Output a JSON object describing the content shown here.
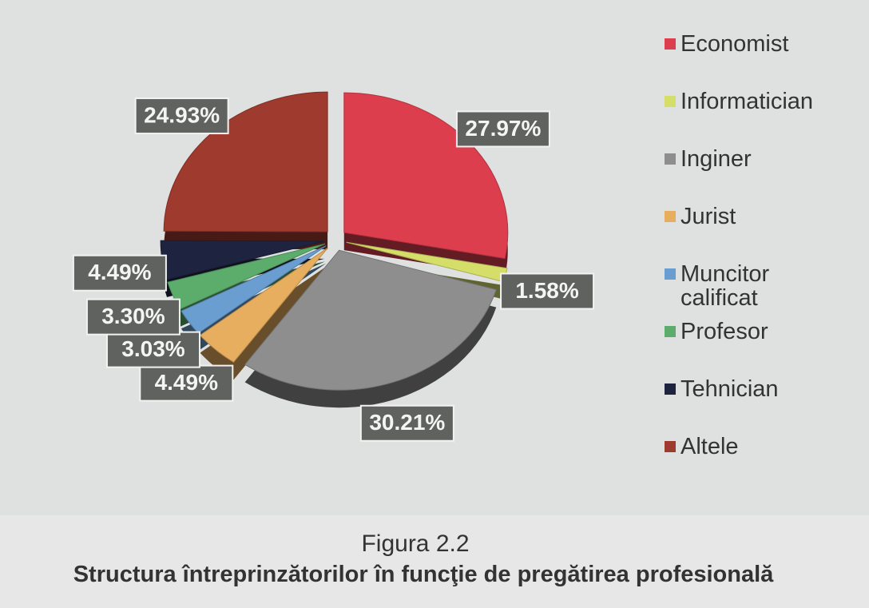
{
  "chart_data": {
    "type": "pie",
    "categories": [
      "Economist",
      "Informatician",
      "Inginer",
      "Jurist",
      "Muncitor calificat",
      "Profesor",
      "Tehnician",
      "Altele"
    ],
    "values": [
      27.97,
      1.58,
      30.21,
      4.49,
      3.03,
      3.3,
      4.49,
      24.93
    ],
    "value_labels": [
      "27.97%",
      "1.58%",
      "30.21%",
      "4.49%",
      "3.03%",
      "3.30%",
      "4.49%",
      "24.93%"
    ],
    "colors": [
      "#dc3e4e",
      "#d6de6a",
      "#8e8e8e",
      "#e6ae5e",
      "#6a9ed0",
      "#5cac6c",
      "#1e2440",
      "#9e3a2e"
    ],
    "caption": "Figura 2.2",
    "title": "Structura întreprinzătorilor în funcţie de pregătirea profesională"
  }
}
